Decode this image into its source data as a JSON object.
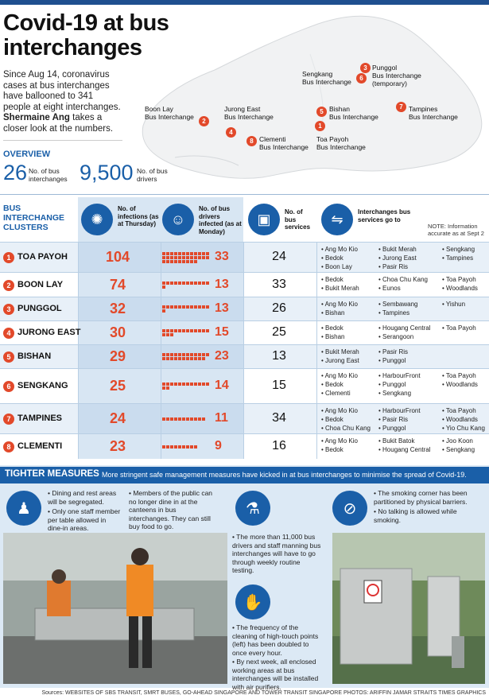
{
  "title": "Covid-19 at bus interchanges",
  "intro": {
    "text": "Since Aug 14, coronavirus cases at bus interchanges have ballooned to 341 people at eight interchanges.",
    "author": "Shermaine Ang",
    "author_tail": "takes a closer look at the numbers."
  },
  "map_labels": [
    {
      "num": "1",
      "name": "Toa Payoh\nBus Interchange"
    },
    {
      "num": "2",
      "name": "Boon Lay\nBus Interchange"
    },
    {
      "num": "3",
      "name": "Punggol\nBus Interchange\n(temporary)"
    },
    {
      "num": "4",
      "name": "Jurong East\nBus Interchange"
    },
    {
      "num": "5",
      "name": "Bishan\nBus Interchange"
    },
    {
      "num": "6",
      "name": "Sengkang\nBus Interchange"
    },
    {
      "num": "7",
      "name": "Tampines\nBus Interchange"
    },
    {
      "num": "8",
      "name": "Clementi\nBus Interchange"
    }
  ],
  "overview": {
    "title": "OVERVIEW",
    "interchanges_num": "26",
    "interchanges_lbl": "No. of bus interchanges",
    "drivers_num": "9,500",
    "drivers_lbl": "No. of bus drivers"
  },
  "table_header": {
    "clusters": "BUS INTERCHANGE CLUSTERS",
    "infections": "No. of infections (as at Thursday)",
    "drivers": "No. of bus drivers infected (as at Monday)",
    "services": "No. of bus services",
    "goto": "Interchanges bus services go to",
    "note": "NOTE: Information accurate as at Sept 2"
  },
  "rows": [
    {
      "num": "1",
      "name": "TOA PAYOH",
      "infections": "104",
      "drivers": "33",
      "services": "24",
      "c1": [
        "Ang Mo Kio",
        "Bedok",
        "Boon Lay"
      ],
      "c2": [
        "Bukit Merah",
        "Jurong East",
        "Pasir Ris"
      ],
      "c3": [
        "Sengkang",
        "Tampines"
      ]
    },
    {
      "num": "2",
      "name": "BOON LAY",
      "infections": "74",
      "drivers": "13",
      "services": "33",
      "c1": [
        "Bedok",
        "Bukit Merah"
      ],
      "c2": [
        "Choa Chu Kang",
        "Eunos"
      ],
      "c3": [
        "Toa Payoh",
        "Woodlands"
      ]
    },
    {
      "num": "3",
      "name": "PUNGGOL",
      "infections": "32",
      "drivers": "13",
      "services": "26",
      "c1": [
        "Ang Mo Kio",
        "Bishan"
      ],
      "c2": [
        "Sembawang",
        "Tampines"
      ],
      "c3": [
        "Yishun"
      ]
    },
    {
      "num": "4",
      "name": "JURONG EAST",
      "infections": "30",
      "drivers": "15",
      "services": "25",
      "c1": [
        "Bedok",
        "Bishan"
      ],
      "c2": [
        "Hougang Central",
        "Serangoon"
      ],
      "c3": [
        "Toa Payoh"
      ]
    },
    {
      "num": "5",
      "name": "BISHAN",
      "infections": "29",
      "drivers": "23",
      "services": "13",
      "c1": [
        "Bukit Merah",
        "Jurong East"
      ],
      "c2": [
        "Pasir Ris",
        "Punggol"
      ],
      "c3": []
    },
    {
      "num": "6",
      "name": "SENGKANG",
      "infections": "25",
      "drivers": "14",
      "services": "15",
      "c1": [
        "Ang Mo Kio",
        "Bedok",
        "Clementi"
      ],
      "c2": [
        "HarbourFront",
        "Punggol",
        "Sengkang"
      ],
      "c3": [
        "Toa Payoh",
        "Woodlands"
      ]
    },
    {
      "num": "7",
      "name": "TAMPINES",
      "infections": "24",
      "drivers": "11",
      "services": "34",
      "c1": [
        "Ang Mo Kio",
        "Bedok",
        "Choa Chu Kang"
      ],
      "c2": [
        "HarbourFront",
        "Pasir Ris",
        "Punggol"
      ],
      "c3": [
        "Toa Payoh",
        "Woodlands",
        "Yio Chu Kang"
      ]
    },
    {
      "num": "8",
      "name": "CLEMENTI",
      "infections": "23",
      "drivers": "9",
      "services": "16",
      "c1": [
        "Ang Mo Kio",
        "Bedok"
      ],
      "c2": [
        "Bukit Batok",
        "Hougang Central"
      ],
      "c3": [
        "Joo Koon",
        "Sengkang"
      ]
    }
  ],
  "measures": {
    "title": "TIGHTER MEASURES",
    "subtitle": "More stringent safe management measures have kicked in at bus interchanges to minimise the spread of Covid-19.",
    "m1a": "• Dining and rest areas will be segregated.",
    "m1b": "• Only one staff member per table allowed in dine-in areas.",
    "m2": "• Members of the public can no longer dine in at the canteens in bus interchanges. They can still buy food to go.",
    "m3": "• The more than 11,000 bus drivers and staff manning bus interchanges will have to go through weekly routine testing.",
    "m4a": "• The frequency of the cleaning of high-touch points (left) has been doubled to once every hour.",
    "m4b": "• By next week, all enclosed working areas at bus interchanges will be installed with air purifiers.",
    "m5a": "• The smoking corner has been partitioned by physical barriers.",
    "m5b": "• No talking is allowed while smoking."
  },
  "footer": "Sources: WEBSITES OF SBS TRANSIT, SMRT BUSES, GO-AHEAD SINGAPORE AND TOWER TRANSIT SINGAPORE   PHOTOS: ARIFFIN JAMAR   STRAITS TIMES GRAPHICS",
  "colors": {
    "accent": "#1a5fa8",
    "highlight": "#e2492a"
  }
}
